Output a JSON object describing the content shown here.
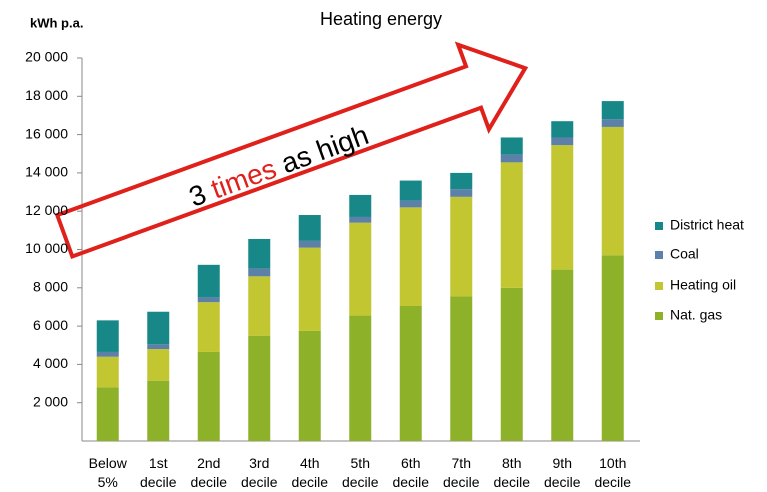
{
  "chart_data": {
    "type": "stacked_bar",
    "title": "Heating energy",
    "y_label": "kWh p.a.",
    "categories": [
      "Below 5%",
      "1st decile",
      "2nd decile",
      "3rd decile",
      "4th decile",
      "5th decile",
      "6th decile",
      "7th decile",
      "8th decile",
      "9th decile",
      "10th decile"
    ],
    "series": [
      {
        "name": "Nat. gas",
        "color": "#8db22a",
        "values": [
          2800,
          3150,
          4650,
          5500,
          5750,
          6550,
          7050,
          7550,
          8000,
          8950,
          9700
        ]
      },
      {
        "name": "Heating oil",
        "color": "#c2c631",
        "values": [
          1600,
          1650,
          2600,
          3100,
          4350,
          4850,
          5150,
          5200,
          6550,
          6500,
          6700
        ]
      },
      {
        "name": "Coal",
        "color": "#5c80a8",
        "values": [
          250,
          250,
          250,
          400,
          350,
          300,
          350,
          400,
          400,
          400,
          400
        ]
      },
      {
        "name": "District heat",
        "color": "#178787",
        "values": [
          1650,
          1700,
          1700,
          1550,
          1350,
          1150,
          1050,
          850,
          900,
          850,
          950
        ]
      }
    ],
    "ylim": [
      0,
      20000
    ],
    "yticks": [
      {
        "value": 2000,
        "label": "2 000"
      },
      {
        "value": 4000,
        "label": "4 000"
      },
      {
        "value": 6000,
        "label": "6 000"
      },
      {
        "value": 8000,
        "label": "8 000"
      },
      {
        "value": 10000,
        "label": "10 000"
      },
      {
        "value": 12000,
        "label": "12 000"
      },
      {
        "value": 14000,
        "label": "14 000"
      },
      {
        "value": 16000,
        "label": "16 000"
      },
      {
        "value": 18000,
        "label": "18 000"
      },
      {
        "value": 20000,
        "label": "20 000"
      }
    ],
    "annotation": {
      "parts": [
        "3",
        "times",
        "as high"
      ],
      "color": "#e0201b"
    }
  }
}
